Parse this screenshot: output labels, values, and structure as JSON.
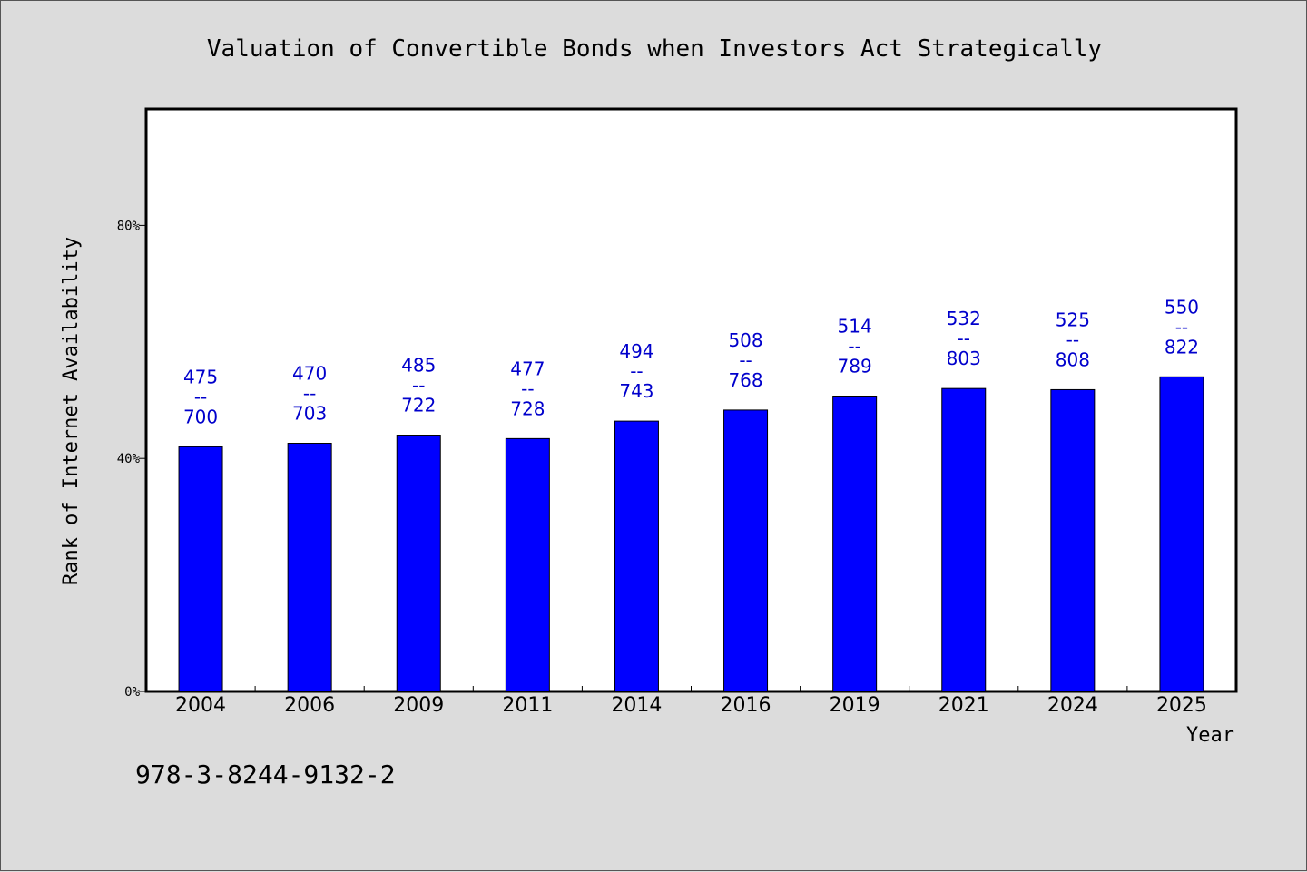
{
  "chart_data": {
    "type": "bar",
    "title": "Valuation of Convertible Bonds when Investors Act Strategically",
    "xlabel": "Year",
    "ylabel": "Rank of Internet Availability",
    "categories": [
      "2004",
      "2006",
      "2009",
      "2011",
      "2014",
      "2016",
      "2019",
      "2021",
      "2024",
      "2025"
    ],
    "values": [
      42,
      42.6,
      44,
      43.4,
      46.4,
      48.3,
      50.7,
      52,
      51.8,
      54
    ],
    "series": [
      {
        "values": [
          42,
          42.6,
          44,
          43.4,
          46.4,
          48.3,
          50.7,
          52,
          51.8,
          54
        ],
        "labels": [
          "475\n--\n700",
          "470\n--\n703",
          "485\n--\n722",
          "477\n--\n728",
          "494\n--\n743",
          "508\n--\n768",
          "514\n--\n789",
          "532\n--\n803",
          "525\n--\n808",
          "550\n--\n822"
        ]
      }
    ],
    "ylim": [
      0,
      100
    ],
    "yticks": [
      0,
      40,
      80
    ],
    "ytick_labels": [
      "0%",
      "40%",
      "80%"
    ],
    "grid": false,
    "bar_color": "#0000ff",
    "label_color": "#0000cc"
  },
  "footer": {
    "isbn": "978-3-8244-9132-2"
  }
}
